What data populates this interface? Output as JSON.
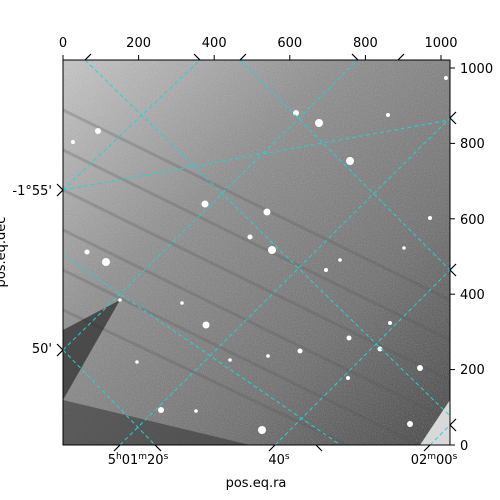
{
  "figure": {
    "x_axis_title": "pos.eq.ra",
    "y_axis_title": "pos.eq.dec",
    "pixel_axis_top_ticks": [
      "0",
      "200",
      "400",
      "600",
      "800",
      "1000"
    ],
    "pixel_axis_right_ticks": [
      "0",
      "200",
      "400",
      "600",
      "800",
      "1000"
    ],
    "ra_ticks": [
      {
        "h": "5",
        "hu": "h",
        "m": "01",
        "mu": "m",
        "s": "20",
        "su": "s"
      },
      {
        "h": "",
        "hu": "",
        "m": "",
        "mu": "",
        "s": "40",
        "su": "s"
      },
      {
        "h": "",
        "hu": "",
        "m": "02",
        "mu": "m",
        "s": "00",
        "su": "s"
      }
    ],
    "dec_ticks": [
      "-1°55'",
      "50'"
    ],
    "colors": {
      "grid": "#22d3d3",
      "image_background": "#7a7a7a",
      "frame": "#000000"
    },
    "image_type": "grayscale astronomical sky image with WCS coordinate grid overlay"
  }
}
